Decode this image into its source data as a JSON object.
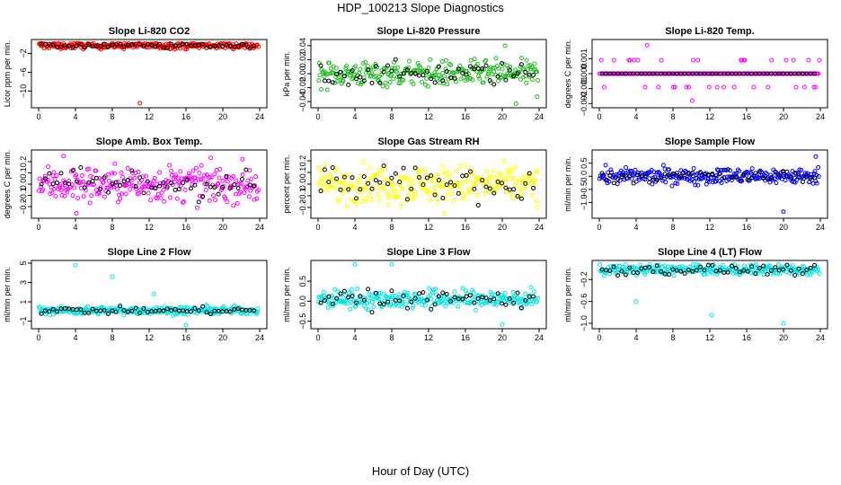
{
  "page": {
    "title": "HDP_100213  Slope Diagnostics",
    "xlabel": "Hour of Day (UTC)"
  },
  "chart_data": [
    {
      "type": "scatter",
      "title": "Slope Li-820 CO2",
      "ylabel": "Licor ppm per min.",
      "xlim": [
        0,
        24
      ],
      "ylim": [
        -13,
        0.4
      ],
      "yticks": [
        -2,
        -6,
        -10
      ],
      "xticks": [
        0,
        4,
        8,
        12,
        16,
        20,
        24
      ],
      "color": "#ff0000",
      "center": -0.3,
      "spread": 0.35,
      "outliers": [
        {
          "x": 11.0,
          "y": -12.6
        },
        {
          "x": 10.9,
          "y": 0.2
        },
        {
          "x": 2.4,
          "y": -1.0
        }
      ]
    },
    {
      "type": "scatter",
      "title": "Slope Li-820 Pressure",
      "ylabel": "kPa per min.",
      "xlim": [
        0,
        24
      ],
      "ylim": [
        -0.045,
        0.045
      ],
      "yticks": [
        -0.04,
        -0.02,
        0.0,
        0.02,
        0.04
      ],
      "xticks": [
        0,
        4,
        8,
        12,
        16,
        20,
        24
      ],
      "color": "#22bb22",
      "center": 0.0,
      "spread": 0.009,
      "outliers": [
        {
          "x": 20.3,
          "y": 0.04
        },
        {
          "x": 21.5,
          "y": -0.043
        },
        {
          "x": 23.8,
          "y": -0.033
        }
      ]
    },
    {
      "type": "scatter",
      "title": "Slope Li-820 Temp.",
      "ylabel": "degrees C per min.",
      "xlim": [
        0,
        24
      ],
      "ylim": [
        -0.0021,
        0.0021
      ],
      "yticks": [
        -0.002,
        -0.001,
        0.0,
        0.001
      ],
      "xticks": [
        0,
        4,
        8,
        12,
        16,
        20,
        24
      ],
      "color": "#ff00ff",
      "center": 0.0,
      "spread": 0.0,
      "outliers": [
        {
          "x": 5.2,
          "y": 0.0019
        },
        {
          "x": 10.1,
          "y": -0.0018
        }
      ]
    },
    {
      "type": "scatter",
      "title": "Slope Amb. Box Temp.",
      "ylabel": "degrees C per min.",
      "xlim": [
        0,
        24
      ],
      "ylim": [
        -0.28,
        0.28
      ],
      "yticks": [
        -0.2,
        -0.1,
        0.0,
        0.1,
        0.2
      ],
      "xticks": [
        0,
        4,
        8,
        12,
        16,
        20,
        24
      ],
      "color": "#ff00ff",
      "center": 0.0,
      "spread": 0.08,
      "outliers": [
        {
          "x": 2.7,
          "y": 0.25
        },
        {
          "x": 4.1,
          "y": -0.26
        }
      ]
    },
    {
      "type": "scatter",
      "title": "Slope Gas Stream RH",
      "ylabel": "percent per min.",
      "xlim": [
        0,
        24
      ],
      "ylim": [
        -0.27,
        0.27
      ],
      "yticks": [
        -0.2,
        -0.1,
        0.0,
        0.1,
        0.2
      ],
      "xticks": [
        0,
        4,
        8,
        12,
        16,
        20,
        24
      ],
      "color": "#ffff00",
      "center": 0.0,
      "spread": 0.08,
      "outliers": [
        {
          "x": 13.7,
          "y": -0.25
        },
        {
          "x": 23.8,
          "y": -0.2
        }
      ]
    },
    {
      "type": "scatter",
      "title": "Slope Sample Flow",
      "ylabel": "ml/min per min.",
      "xlim": [
        0,
        24
      ],
      "ylim": [
        -1.5,
        0.9
      ],
      "yticks": [
        -1.0,
        -0.5,
        0.0,
        0.5
      ],
      "xticks": [
        0,
        4,
        8,
        12,
        16,
        20,
        24
      ],
      "color": "#0000ff",
      "center": 0.0,
      "spread": 0.15,
      "outliers": [
        {
          "x": 20.0,
          "y": -1.35
        },
        {
          "x": 23.5,
          "y": 0.75
        }
      ]
    },
    {
      "type": "scatter",
      "title": "Slope Line 2 Flow",
      "ylabel": "ml/min per min.",
      "xlim": [
        0,
        24
      ],
      "ylim": [
        -1.5,
        5.0
      ],
      "yticks": [
        -1,
        1,
        3,
        5
      ],
      "xticks": [
        0,
        4,
        8,
        12,
        16,
        20,
        24
      ],
      "color": "#00e5e5",
      "center": 0.1,
      "spread": 0.2,
      "outliers": [
        {
          "x": 4.0,
          "y": 4.8
        },
        {
          "x": 8.0,
          "y": 3.6
        },
        {
          "x": 12.5,
          "y": 1.8
        },
        {
          "x": 16.0,
          "y": -1.4
        }
      ]
    },
    {
      "type": "scatter",
      "title": "Slope Line 3 Flow",
      "ylabel": "ml/min per min.",
      "xlim": [
        0,
        24
      ],
      "ylim": [
        -0.62,
        0.95
      ],
      "yticks": [
        -0.5,
        0.0,
        0.5
      ],
      "xticks": [
        0,
        4,
        8,
        12,
        16,
        20,
        24
      ],
      "color": "#00e5e5",
      "center": 0.05,
      "spread": 0.12,
      "outliers": [
        {
          "x": 4.0,
          "y": 0.92
        },
        {
          "x": 8.0,
          "y": 0.92
        },
        {
          "x": 20.0,
          "y": -0.58
        }
      ]
    },
    {
      "type": "scatter",
      "title": "Slope Line 4 (LT) Flow",
      "ylabel": "ml/min per min.",
      "xlim": [
        0,
        24
      ],
      "ylim": [
        -1.05,
        0.1
      ],
      "yticks": [
        -1.0,
        -0.6,
        -0.2
      ],
      "xticks": [
        0,
        4,
        8,
        12,
        16,
        20,
        24
      ],
      "color": "#00e5e5",
      "center": -0.02,
      "spread": 0.05,
      "outliers": [
        {
          "x": 4.0,
          "y": -0.6
        },
        {
          "x": 12.2,
          "y": -0.85
        },
        {
          "x": 20.0,
          "y": -1.0
        }
      ]
    }
  ]
}
